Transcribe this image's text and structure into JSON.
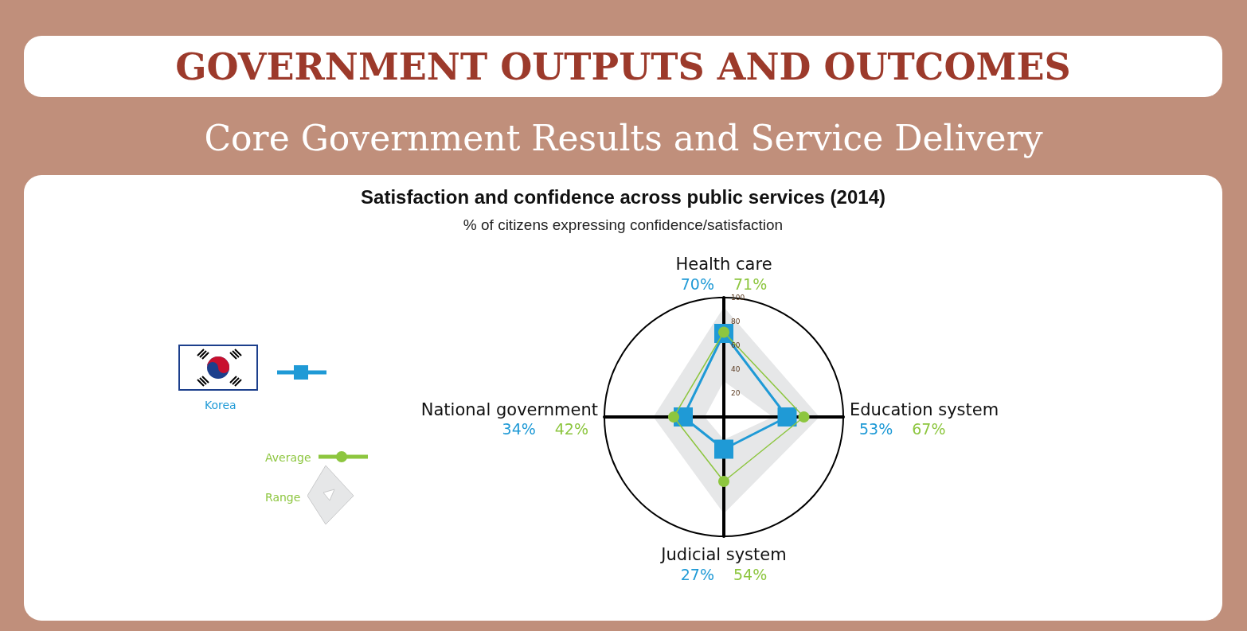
{
  "chart_data": {
    "type": "radar",
    "title": "Satisfaction and confidence across public services (2014)",
    "subtitle": "% of citizens expressing confidence/satisfaction",
    "annotations": [
      "GOVERNMENT OUTPUTS AND OUTCOMES",
      "Core Government Results and Service Delivery",
      "70%",
      "71%",
      "53%",
      "67%",
      "27%",
      "54%",
      "34%",
      "42%"
    ],
    "categories": [
      "Health care",
      "Education system",
      "Judicial system",
      "National government"
    ],
    "series": [
      {
        "name": "Korea",
        "color": "#1f9ad6",
        "values": [
          70,
          53,
          27,
          34
        ],
        "marker": "square",
        "line_style": "solid"
      },
      {
        "name": "Average",
        "color": "#8dc63f",
        "values": [
          71,
          67,
          54,
          42
        ],
        "marker": "circle",
        "line_style": "solid"
      },
      {
        "name": "Range",
        "type": "area",
        "color": "#e6e7e8",
        "values": [
          92,
          80,
          81,
          59
        ]
      },
      {
        "type": "area",
        "color": "#ffffff",
        "values": [
          30,
          41,
          19,
          16
        ]
      }
    ],
    "ylim": [
      0,
      100
    ],
    "yticks": [
      20,
      40,
      60,
      80,
      100
    ],
    "legend": "left",
    "grid": false
  }
}
